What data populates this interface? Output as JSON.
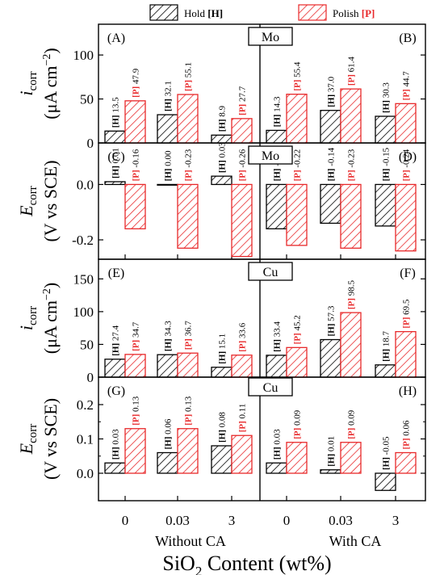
{
  "legend": [
    {
      "key": "hold",
      "label_text": "Hold ",
      "label_tag": "[H]",
      "color": "#000000",
      "pattern": "hatch-black"
    },
    {
      "key": "polish",
      "label_text": "Polish ",
      "label_tag": "[P]",
      "color": "#e8282a",
      "pattern": "hatch-red"
    }
  ],
  "x_axis": {
    "title_main": "SiO",
    "title_sub": "2",
    "title_rest": " Content (wt%)",
    "tick_labels": [
      "0",
      "0.03",
      "3",
      "0",
      "0.03",
      "3"
    ],
    "group_labels": [
      "Without CA",
      "With CA"
    ]
  },
  "colors": {
    "hold": "#000000",
    "polish": "#e8282a",
    "polish_text": "#e8282a"
  },
  "chart_data": [
    {
      "type": "bar",
      "panels": [
        "(A)",
        "(B)"
      ],
      "metal": "Mo",
      "ylabel_sym": "i",
      "ylabel_sub": "corr",
      "ylabel_unit": "(μA cm",
      "ylabel_unit_sup": "−2",
      "ylabel_unit_end": ")",
      "ylim": [
        0,
        135
      ],
      "yticks": [
        0,
        50,
        100
      ],
      "tick_labels": [
        "0",
        "50",
        "100"
      ],
      "categories": [
        "0",
        "0.03",
        "3",
        "0",
        "0.03",
        "3"
      ],
      "series": [
        {
          "name": "Hold [H]",
          "values": [
            13.5,
            32.1,
            8.9,
            14.3,
            37.0,
            30.3
          ],
          "labels": [
            "13.5",
            "32.1",
            "8.9",
            "14.3",
            "37.0",
            "30.3"
          ]
        },
        {
          "name": "Polish [P]",
          "values": [
            47.9,
            55.1,
            27.7,
            55.4,
            61.4,
            44.7
          ],
          "labels": [
            "47.9",
            "55.1",
            "27.7",
            "55.4",
            "61.4",
            "44.7"
          ]
        }
      ]
    },
    {
      "type": "bar",
      "panels": [
        "(C)",
        "(D)"
      ],
      "metal": "Mo",
      "ylabel_sym": "E",
      "ylabel_sub": "corr",
      "ylabel_unit": "(V vs SCE)",
      "ylabel_unit_sup": "",
      "ylabel_unit_end": "",
      "ylim": [
        -0.27,
        0.15
      ],
      "yticks": [
        -0.2,
        0.0
      ],
      "tick_labels": [
        "-0.2",
        "0.0"
      ],
      "categories": [
        "0",
        "0.03",
        "3",
        "0",
        "0.03",
        "3"
      ],
      "series": [
        {
          "name": "Hold [H]",
          "values": [
            0.01,
            0.0,
            0.03,
            -0.16,
            -0.14,
            -0.15
          ],
          "labels": [
            "0.01",
            "0.00",
            "0.03",
            "-0.16",
            "-0.14",
            "-0.15"
          ]
        },
        {
          "name": "Polish [P]",
          "values": [
            -0.16,
            -0.23,
            -0.26,
            -0.22,
            -0.23,
            -0.24
          ],
          "labels": [
            "-0.16",
            "-0.23",
            "-0.26",
            "-0.22",
            "-0.23",
            "-0.24"
          ]
        }
      ]
    },
    {
      "type": "bar",
      "panels": [
        "(E)",
        "(F)"
      ],
      "metal": "Cu",
      "ylabel_sym": "i",
      "ylabel_sub": "corr",
      "ylabel_unit": "(μA cm",
      "ylabel_unit_sup": "−2",
      "ylabel_unit_end": ")",
      "ylim": [
        0,
        180
      ],
      "yticks": [
        0,
        50,
        100,
        150
      ],
      "tick_labels": [
        "0",
        "50",
        "100",
        "150"
      ],
      "categories": [
        "0",
        "0.03",
        "3",
        "0",
        "0.03",
        "3"
      ],
      "series": [
        {
          "name": "Hold [H]",
          "values": [
            27.4,
            34.3,
            15.1,
            33.4,
            57.3,
            18.7
          ],
          "labels": [
            "27.4",
            "34.3",
            "15.1",
            "33.4",
            "57.3",
            "18.7"
          ]
        },
        {
          "name": "Polish [P]",
          "values": [
            34.7,
            36.7,
            33.6,
            45.2,
            98.5,
            69.5
          ],
          "labels": [
            "34.7",
            "36.7",
            "33.6",
            "45.2",
            "98.5",
            "69.5"
          ]
        }
      ]
    },
    {
      "type": "bar",
      "panels": [
        "(G)",
        "(H)"
      ],
      "metal": "Cu",
      "ylabel_sym": "E",
      "ylabel_sub": "corr",
      "ylabel_unit": "(V vs SCE)",
      "ylabel_unit_sup": "",
      "ylabel_unit_end": "",
      "ylim": [
        -0.08,
        0.28
      ],
      "yticks": [
        0.0,
        0.1,
        0.2
      ],
      "tick_labels": [
        "0.0",
        "0.1",
        "0.2"
      ],
      "minor_ticks": true,
      "categories": [
        "0",
        "0.03",
        "3",
        "0",
        "0.03",
        "3"
      ],
      "series": [
        {
          "name": "Hold [H]",
          "values": [
            0.03,
            0.06,
            0.08,
            0.03,
            0.01,
            -0.05
          ],
          "labels": [
            "0.03",
            "0.06",
            "0.08",
            "0.03",
            "0.01",
            "-0.05"
          ]
        },
        {
          "name": "Polish [P]",
          "values": [
            0.13,
            0.13,
            0.11,
            0.09,
            0.09,
            0.06
          ],
          "labels": [
            "0.13",
            "0.13",
            "0.11",
            "0.09",
            "0.09",
            "0.06"
          ]
        }
      ]
    }
  ]
}
